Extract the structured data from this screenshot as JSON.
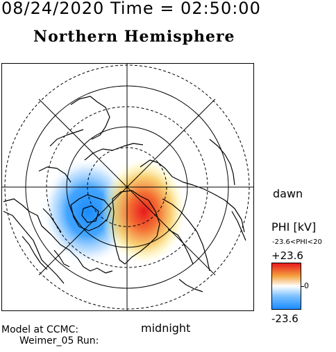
{
  "header": {
    "time_line": "08/24/2020 Time = 02:50:00",
    "title": "Northern Hemisphere"
  },
  "labels": {
    "dawn": "dawn",
    "midnight": "midnight",
    "model_line": "Model at CCMC:",
    "run_line": "Weimer_05 Run:"
  },
  "colorbar": {
    "title": "PHI [kV]",
    "range_text": "-23.6<PHI<20",
    "max_label": "+23.6",
    "zero_label": "0",
    "min_label": "-23.6",
    "colors": {
      "positive": "#e8191d",
      "mid": "#ffffff",
      "negative": "#1a8cff"
    }
  },
  "map": {
    "projection": "polar (north pole centered)",
    "potential_cells": [
      {
        "sign": "negative",
        "color": "#1a8cff"
      },
      {
        "sign": "positive",
        "color": "#e8191d"
      }
    ]
  }
}
